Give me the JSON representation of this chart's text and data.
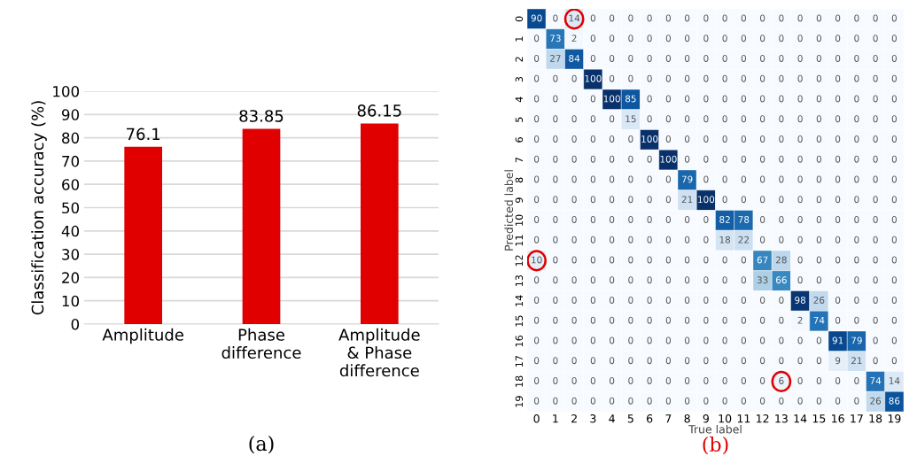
{
  "chart_data": [
    {
      "type": "bar",
      "ylabel": "Classification accuracy (%)",
      "categories": [
        "Amplitude",
        "Phase\ndifference",
        "Amplitude\n& Phase\ndifference"
      ],
      "values": [
        76.1,
        83.85,
        86.15
      ],
      "color": "#e00000",
      "ylim": [
        0,
        100
      ],
      "yticks": [
        0,
        10,
        20,
        30,
        40,
        50,
        60,
        70,
        80,
        90,
        100
      ],
      "grid": "y",
      "data_labels": true,
      "annotations": [
        "(a)"
      ]
    },
    {
      "type": "heatmap",
      "xlabel": "True label",
      "ylabel": "Predicted label",
      "categories": [
        "0",
        "1",
        "2",
        "3",
        "4",
        "5",
        "6",
        "7",
        "8",
        "9",
        "10",
        "11",
        "12",
        "13",
        "14",
        "15",
        "16",
        "17",
        "18",
        "19"
      ],
      "y_categories": [
        "0",
        "1",
        "2",
        "3",
        "4",
        "5",
        "6",
        "7",
        "8",
        "9",
        "10",
        "11",
        "12",
        "13",
        "14",
        "15",
        "16",
        "17",
        "18",
        "19"
      ],
      "cells": [
        [
          90,
          0,
          14,
          0,
          0,
          0,
          0,
          0,
          0,
          0,
          0,
          0,
          0,
          0,
          0,
          0,
          0,
          0,
          0,
          0
        ],
        [
          0,
          73,
          2,
          0,
          0,
          0,
          0,
          0,
          0,
          0,
          0,
          0,
          0,
          0,
          0,
          0,
          0,
          0,
          0,
          0
        ],
        [
          0,
          27,
          84,
          0,
          0,
          0,
          0,
          0,
          0,
          0,
          0,
          0,
          0,
          0,
          0,
          0,
          0,
          0,
          0,
          0
        ],
        [
          0,
          0,
          0,
          100,
          0,
          0,
          0,
          0,
          0,
          0,
          0,
          0,
          0,
          0,
          0,
          0,
          0,
          0,
          0,
          0
        ],
        [
          0,
          0,
          0,
          0,
          100,
          85,
          0,
          0,
          0,
          0,
          0,
          0,
          0,
          0,
          0,
          0,
          0,
          0,
          0,
          0
        ],
        [
          0,
          0,
          0,
          0,
          0,
          15,
          0,
          0,
          0,
          0,
          0,
          0,
          0,
          0,
          0,
          0,
          0,
          0,
          0,
          0
        ],
        [
          0,
          0,
          0,
          0,
          0,
          0,
          100,
          0,
          0,
          0,
          0,
          0,
          0,
          0,
          0,
          0,
          0,
          0,
          0,
          0
        ],
        [
          0,
          0,
          0,
          0,
          0,
          0,
          0,
          100,
          0,
          0,
          0,
          0,
          0,
          0,
          0,
          0,
          0,
          0,
          0,
          0
        ],
        [
          0,
          0,
          0,
          0,
          0,
          0,
          0,
          0,
          79,
          0,
          0,
          0,
          0,
          0,
          0,
          0,
          0,
          0,
          0,
          0
        ],
        [
          0,
          0,
          0,
          0,
          0,
          0,
          0,
          0,
          21,
          100,
          0,
          0,
          0,
          0,
          0,
          0,
          0,
          0,
          0,
          0
        ],
        [
          0,
          0,
          0,
          0,
          0,
          0,
          0,
          0,
          0,
          0,
          82,
          78,
          0,
          0,
          0,
          0,
          0,
          0,
          0,
          0
        ],
        [
          0,
          0,
          0,
          0,
          0,
          0,
          0,
          0,
          0,
          0,
          18,
          22,
          0,
          0,
          0,
          0,
          0,
          0,
          0,
          0
        ],
        [
          10,
          0,
          0,
          0,
          0,
          0,
          0,
          0,
          0,
          0,
          0,
          0,
          67,
          28,
          0,
          0,
          0,
          0,
          0,
          0
        ],
        [
          0,
          0,
          0,
          0,
          0,
          0,
          0,
          0,
          0,
          0,
          0,
          0,
          33,
          66,
          0,
          0,
          0,
          0,
          0,
          0
        ],
        [
          0,
          0,
          0,
          0,
          0,
          0,
          0,
          0,
          0,
          0,
          0,
          0,
          0,
          0,
          98,
          26,
          0,
          0,
          0,
          0
        ],
        [
          0,
          0,
          0,
          0,
          0,
          0,
          0,
          0,
          0,
          0,
          0,
          0,
          0,
          0,
          2,
          74,
          0,
          0,
          0,
          0
        ],
        [
          0,
          0,
          0,
          0,
          0,
          0,
          0,
          0,
          0,
          0,
          0,
          0,
          0,
          0,
          0,
          0,
          91,
          79,
          0,
          0
        ],
        [
          0,
          0,
          0,
          0,
          0,
          0,
          0,
          0,
          0,
          0,
          0,
          0,
          0,
          0,
          0,
          0,
          9,
          21,
          0,
          0
        ],
        [
          0,
          0,
          0,
          0,
          0,
          0,
          0,
          0,
          0,
          0,
          0,
          0,
          0,
          6,
          0,
          0,
          0,
          0,
          74,
          14
        ],
        [
          0,
          0,
          0,
          0,
          0,
          0,
          0,
          0,
          0,
          0,
          0,
          0,
          0,
          0,
          0,
          0,
          0,
          0,
          26,
          86
        ]
      ],
      "data_labels": true,
      "annotations": [
        "(b)"
      ]
    }
  ]
}
